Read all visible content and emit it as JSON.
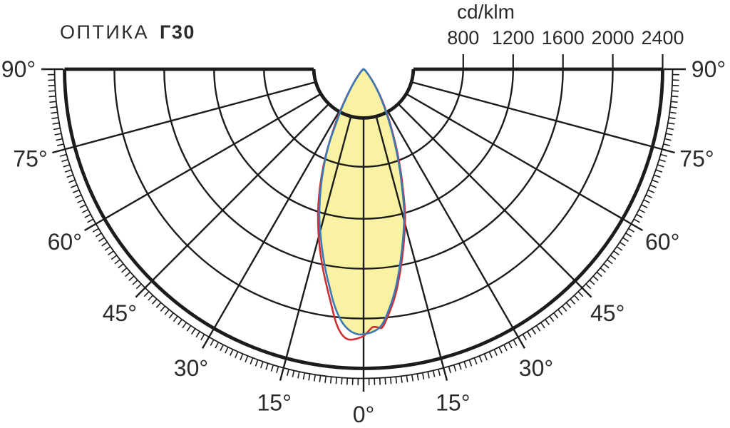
{
  "title": {
    "prefix": "ОПТИКА",
    "code": "Г30"
  },
  "scale": {
    "unit": "cd/klm",
    "tick_values": [
      800,
      1200,
      1600,
      2000,
      2400
    ],
    "tick_labels": [
      "800",
      "1200",
      "1600",
      "2000",
      "2400"
    ]
  },
  "colors": {
    "grid": "#1c1c1c",
    "text": "#2b2b2b",
    "beam_fill": "#f8f2a2",
    "curve_c0": "#cf2f33",
    "curve_c90": "#3c79b4",
    "background": "#ffffff"
  },
  "chart_data": {
    "type": "polar-photometric",
    "title": "ОПТИКА Г30",
    "unit": "cd/klm",
    "rings": [
      400,
      800,
      1200,
      1600,
      2000,
      2400
    ],
    "labeled_rings": [
      800,
      1200,
      1600,
      2000,
      2400
    ],
    "ring_max": 2400,
    "angle_tick_degrees": [
      0,
      15,
      30,
      45,
      60,
      75,
      90
    ],
    "angle_tick_labels": [
      "0°",
      "15°",
      "30°",
      "45°",
      "60°",
      "75°",
      "90°"
    ],
    "minor_tick_step_deg": 1,
    "radial_line_step_deg": 15,
    "legend_position": "none",
    "grid": true,
    "series": [
      {
        "id": "plane-C0",
        "name": "C0 plane intensity",
        "color": "#cf2f33",
        "points": [
          [
            -90,
            0
          ],
          [
            -75,
            3
          ],
          [
            -60,
            9
          ],
          [
            -50,
            20
          ],
          [
            -45,
            36
          ],
          [
            -40,
            68
          ],
          [
            -37,
            112
          ],
          [
            -34,
            180
          ],
          [
            -32,
            250
          ],
          [
            -30,
            340
          ],
          [
            -28,
            450
          ],
          [
            -26,
            580
          ],
          [
            -24,
            730
          ],
          [
            -22,
            880
          ],
          [
            -20,
            1030
          ],
          [
            -18,
            1180
          ],
          [
            -16,
            1320
          ],
          [
            -14,
            1460
          ],
          [
            -12,
            1600
          ],
          [
            -10,
            1740
          ],
          [
            -8,
            1890
          ],
          [
            -6,
            2060
          ],
          [
            -5,
            2120
          ],
          [
            -4,
            2158
          ],
          [
            -3,
            2172
          ],
          [
            -2,
            2168
          ],
          [
            -1,
            2156
          ],
          [
            0,
            2140
          ],
          [
            1,
            2105
          ],
          [
            2,
            2070
          ],
          [
            3,
            2072
          ],
          [
            4,
            2082
          ],
          [
            5,
            2030
          ],
          [
            6,
            1965
          ],
          [
            8,
            1830
          ],
          [
            10,
            1670
          ],
          [
            12,
            1510
          ],
          [
            14,
            1358
          ],
          [
            16,
            1208
          ],
          [
            18,
            1028
          ],
          [
            20,
            870
          ],
          [
            22,
            724
          ],
          [
            24,
            597
          ],
          [
            26,
            486
          ],
          [
            28,
            394
          ],
          [
            30,
            316
          ],
          [
            32,
            249
          ],
          [
            34,
            191
          ],
          [
            37,
            122
          ],
          [
            40,
            74
          ],
          [
            44,
            43
          ],
          [
            50,
            21
          ],
          [
            60,
            9
          ],
          [
            75,
            3
          ],
          [
            90,
            0
          ]
        ]
      },
      {
        "id": "plane-C90",
        "name": "C90 plane intensity",
        "color": "#3c79b4",
        "points": [
          [
            -90,
            0
          ],
          [
            -78,
            2
          ],
          [
            -65,
            6
          ],
          [
            -55,
            13
          ],
          [
            -48,
            25
          ],
          [
            -43,
            45
          ],
          [
            -39,
            80
          ],
          [
            -36,
            130
          ],
          [
            -33,
            205
          ],
          [
            -31,
            275
          ],
          [
            -29,
            370
          ],
          [
            -27,
            480
          ],
          [
            -25,
            650
          ],
          [
            -23,
            790
          ],
          [
            -21,
            930
          ],
          [
            -19,
            1070
          ],
          [
            -17,
            1215
          ],
          [
            -15,
            1345
          ],
          [
            -13,
            1480
          ],
          [
            -11,
            1620
          ],
          [
            -9,
            1760
          ],
          [
            -7,
            1910
          ],
          [
            -5,
            2030
          ],
          [
            -3,
            2100
          ],
          [
            -1,
            2128
          ],
          [
            0,
            2125
          ],
          [
            2,
            2108
          ],
          [
            4,
            2060
          ],
          [
            6,
            1940
          ],
          [
            8,
            1800
          ],
          [
            10,
            1640
          ],
          [
            12,
            1480
          ],
          [
            14,
            1330
          ],
          [
            16,
            1180
          ],
          [
            18,
            1000
          ],
          [
            20,
            845
          ],
          [
            22,
            700
          ],
          [
            24,
            575
          ],
          [
            26,
            465
          ],
          [
            28,
            375
          ],
          [
            30,
            300
          ],
          [
            32,
            235
          ],
          [
            34,
            180
          ],
          [
            37,
            115
          ],
          [
            40,
            70
          ],
          [
            44,
            40
          ],
          [
            50,
            20
          ],
          [
            60,
            9
          ],
          [
            75,
            3
          ],
          [
            90,
            0
          ]
        ]
      }
    ]
  }
}
